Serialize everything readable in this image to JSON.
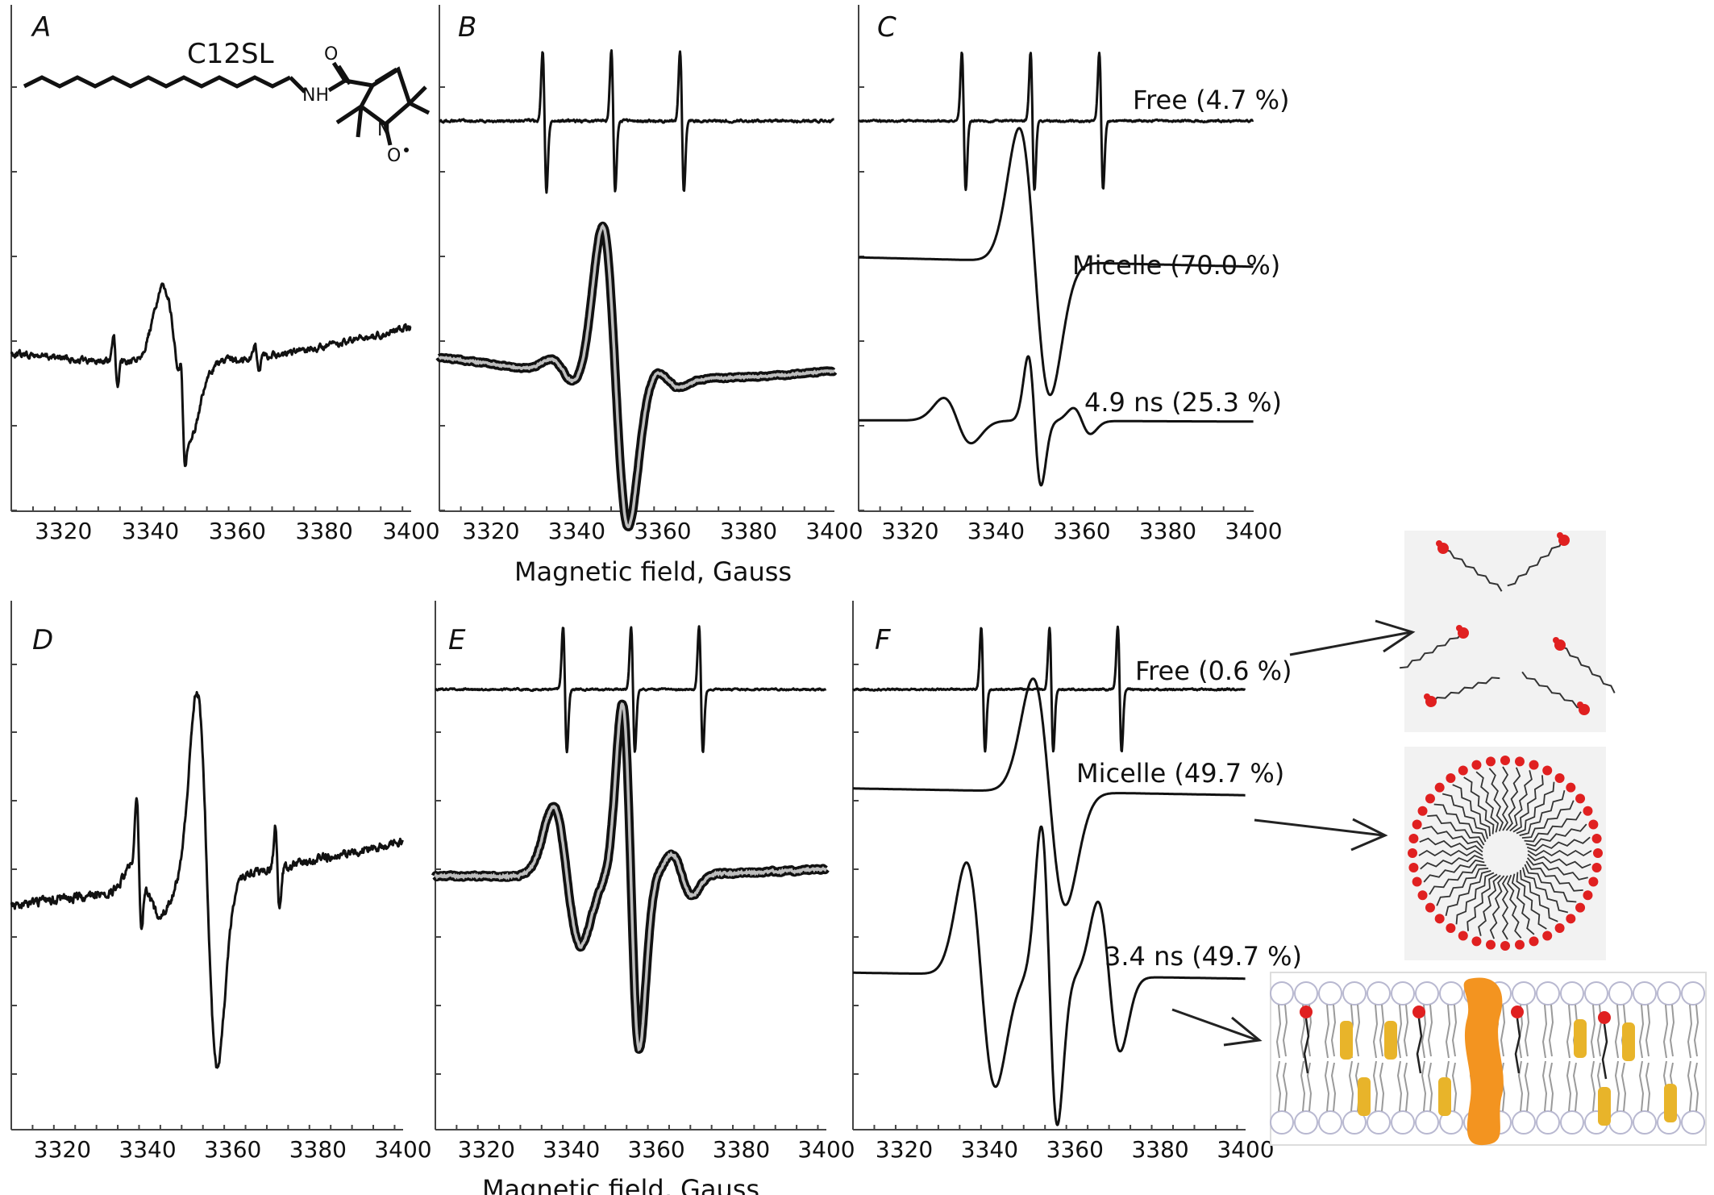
{
  "figure": {
    "xlabel": "Magnetic field, Gauss",
    "molecule_label": "C12SL",
    "atom_labels": {
      "o": "O",
      "nh": "NH",
      "n": "N",
      "o2": "O"
    }
  },
  "chart_data": [
    {
      "panel": "A",
      "type": "line",
      "xlim": [
        3308,
        3400
      ],
      "xticks": [
        3320,
        3340,
        3360,
        3380,
        3400
      ],
      "series": [
        {
          "kind": "esr",
          "noise": 0.8,
          "lines": [
            {
              "center": 3332,
              "width": 0.45,
              "amp": 0.34
            },
            {
              "center": 3347.5,
              "width": 0.45,
              "amp": 0.5
            },
            {
              "center": 3364.5,
              "width": 0.45,
              "amp": 0.2
            },
            {
              "center": 3346,
              "width": 3.0,
              "amp": 1.0
            }
          ]
        }
      ]
    },
    {
      "panel": "B",
      "type": "line",
      "xlim": [
        3308,
        3400
      ],
      "xticks": [
        3320,
        3340,
        3360,
        3380,
        3400
      ],
      "series": [
        {
          "kind": "esr",
          "noise": 0.45,
          "lines": [
            {
              "center": 3332.5,
              "width": 0.45,
              "amp": 1.0
            },
            {
              "center": 3348.5,
              "width": 0.45,
              "amp": 1.0
            },
            {
              "center": 3364.5,
              "width": 0.45,
              "amp": 1.0
            }
          ]
        },
        {
          "kind": "esr",
          "noise": 0.15,
          "fit": true,
          "lines": [
            {
              "center": 3337,
              "width": 3.0,
              "amp": 0.08
            },
            {
              "center": 3349,
              "width": 3.0,
              "amp": 1.0
            },
            {
              "center": 3361,
              "width": 3.0,
              "amp": 0.06
            }
          ]
        }
      ]
    },
    {
      "panel": "C",
      "type": "line",
      "xlim": [
        3308,
        3400
      ],
      "xticks": [
        3320,
        3340,
        3360,
        3380,
        3400
      ],
      "series": [
        {
          "name": "Free (4.7 %)",
          "kind": "esr",
          "noise": 0.35,
          "lines": [
            {
              "center": 3332.5,
              "width": 0.45,
              "amp": 1.0
            },
            {
              "center": 3348.5,
              "width": 0.45,
              "amp": 1.0
            },
            {
              "center": 3364.5,
              "width": 0.45,
              "amp": 1.0
            }
          ]
        },
        {
          "name": "Micelle (70.0 %)",
          "kind": "esr",
          "noise": 0,
          "lines": [
            {
              "center": 3349,
              "width": 3.6,
              "amp": 1.0
            }
          ]
        },
        {
          "name": "4.9 ns (25.3 %)",
          "kind": "esr",
          "noise": 0,
          "lines": [
            {
              "center": 3331,
              "width": 3.2,
              "amp": 0.35
            },
            {
              "center": 3349,
              "width": 1.5,
              "amp": 1.0
            },
            {
              "center": 3360,
              "width": 2.0,
              "amp": 0.2
            }
          ]
        }
      ]
    },
    {
      "panel": "D",
      "type": "line",
      "xlim": [
        3308,
        3400
      ],
      "xticks": [
        3320,
        3340,
        3360,
        3380,
        3400
      ],
      "series": [
        {
          "kind": "esr",
          "noise": 0.55,
          "lines": [
            {
              "center": 3338,
              "width": 0.55,
              "amp": 0.34
            },
            {
              "center": 3354,
              "width": 2.4,
              "amp": 1.0
            },
            {
              "center": 3370.5,
              "width": 0.5,
              "amp": 0.22
            },
            {
              "center": 3340,
              "width": 3.0,
              "amp": 0.15
            }
          ]
        }
      ]
    },
    {
      "panel": "E",
      "type": "line",
      "xlim": [
        3308,
        3400
      ],
      "xticks": [
        3320,
        3340,
        3360,
        3380,
        3400
      ],
      "series": [
        {
          "kind": "esr",
          "noise": 0.35,
          "lines": [
            {
              "center": 3338.5,
              "width": 0.45,
              "amp": 1.0
            },
            {
              "center": 3354.5,
              "width": 0.45,
              "amp": 1.0
            },
            {
              "center": 3370.5,
              "width": 0.45,
              "amp": 1.0
            }
          ]
        },
        {
          "kind": "esr",
          "noise": 0.18,
          "fit": true,
          "lines": [
            {
              "center": 3339,
              "width": 3.2,
              "amp": 0.4
            },
            {
              "center": 3354,
              "width": 2.0,
              "amp": 1.0
            },
            {
              "center": 3366,
              "width": 2.4,
              "amp": 0.12
            }
          ]
        }
      ]
    },
    {
      "panel": "F",
      "type": "line",
      "xlim": [
        3308,
        3400
      ],
      "xticks": [
        3320,
        3340,
        3360,
        3380,
        3400
      ],
      "series": [
        {
          "name": "Free (0.6 %)",
          "kind": "esr",
          "noise": 0.35,
          "lines": [
            {
              "center": 3338.5,
              "width": 0.45,
              "amp": 1.0
            },
            {
              "center": 3354.5,
              "width": 0.45,
              "amp": 1.0
            },
            {
              "center": 3370.5,
              "width": 0.45,
              "amp": 1.0
            }
          ]
        },
        {
          "name": "Micelle (49.7 %)",
          "kind": "esr",
          "noise": 0,
          "lines": [
            {
              "center": 3354,
              "width": 3.8,
              "amp": 1.0
            }
          ]
        },
        {
          "name": "3.4 ns (49.7 %)",
          "kind": "esr",
          "noise": 0,
          "lines": [
            {
              "center": 3338,
              "width": 3.4,
              "amp": 0.75
            },
            {
              "center": 3354,
              "width": 1.9,
              "amp": 1.0
            },
            {
              "center": 3368,
              "width": 2.6,
              "amp": 0.5
            }
          ]
        }
      ]
    }
  ],
  "colors": {
    "trace": "#111111",
    "fit": "#bdbdbd",
    "lipid_head": "#ffffff",
    "lipid_edge": "#b8b8d0",
    "spin_label": "#e02020",
    "cholesterol": "#e8b42a",
    "protein": "#f39420",
    "inset_bg": "#f2f2f2"
  }
}
